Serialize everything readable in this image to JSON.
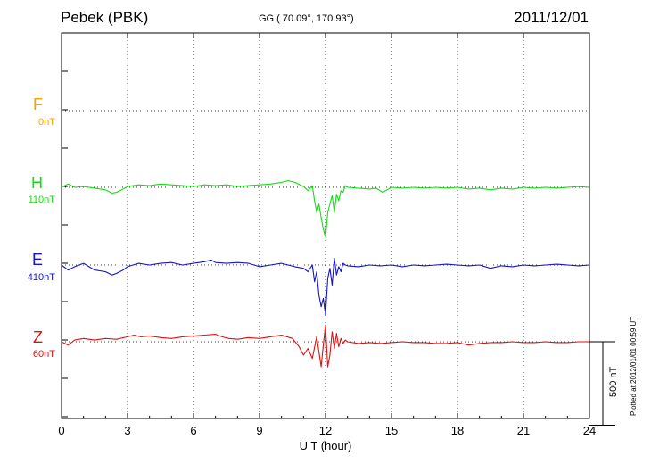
{
  "header": {
    "station": "Pebek (PBK)",
    "coords": "GG ( 70.09°, 170.93°)",
    "date": "2011/12/01"
  },
  "colors": {
    "F": "#f5a300",
    "H": "#19d919",
    "E": "#1414cc",
    "Z": "#dd1111"
  },
  "plotted_note": "Plotted at 2012/01/01 00:59 UT",
  "scale_bar_label": "500 nT",
  "chart_data": {
    "type": "line",
    "title": "Pebek (PBK)",
    "xlabel": "U T (hour)",
    "ylabel": "",
    "xlim": [
      0,
      24
    ],
    "x_ticks": [
      0,
      3,
      6,
      9,
      12,
      15,
      18,
      21,
      24
    ],
    "grid": true,
    "scale_bar_nT": 500,
    "series": [
      {
        "name": "F",
        "baseline_nT": "0nT",
        "color": "#f5a300",
        "x": [],
        "y": []
      },
      {
        "name": "H",
        "baseline_nT": "110nT",
        "color": "#19d919",
        "x": [
          0,
          0.3,
          0.6,
          1,
          1.5,
          2,
          2.3,
          2.5,
          2.8,
          3,
          3.5,
          4,
          4.5,
          5,
          5.5,
          6,
          6.5,
          7,
          7.5,
          8,
          8.5,
          9,
          9.5,
          10,
          10.3,
          10.6,
          11,
          11.2,
          11.4,
          11.5,
          11.6,
          11.7,
          11.8,
          11.9,
          12,
          12.1,
          12.2,
          12.3,
          12.4,
          12.5,
          12.6,
          12.7,
          12.8,
          12.9,
          13,
          13.5,
          14,
          14.3,
          14.6,
          15,
          15.5,
          16,
          16.5,
          17,
          17.5,
          18,
          18.5,
          19,
          19.5,
          20,
          20.5,
          21,
          21.5,
          22,
          22.5,
          23,
          23.5,
          24
        ],
        "y": [
          0,
          20,
          0,
          5,
          -5,
          -15,
          -35,
          -30,
          -10,
          5,
          15,
          10,
          20,
          15,
          10,
          5,
          15,
          10,
          15,
          5,
          10,
          15,
          20,
          30,
          40,
          30,
          5,
          -20,
          10,
          -80,
          -150,
          -100,
          -180,
          -250,
          -300,
          -150,
          -100,
          -50,
          -150,
          -40,
          -80,
          -20,
          -30,
          10,
          0,
          -5,
          -10,
          -5,
          -30,
          0,
          -5,
          0,
          -5,
          0,
          -5,
          0,
          -10,
          -5,
          -15,
          -5,
          -10,
          0,
          -5,
          0,
          -5,
          0,
          5,
          0
        ]
      },
      {
        "name": "E",
        "baseline_nT": "410nT",
        "color": "#1414cc",
        "x": [
          0,
          0.3,
          0.6,
          1,
          1.5,
          2,
          2.3,
          2.5,
          2.8,
          3,
          3.5,
          4,
          4.5,
          5,
          5.5,
          6,
          6.5,
          6.8,
          7,
          7.5,
          8,
          8.5,
          9,
          9.5,
          10,
          10.3,
          10.6,
          11,
          11.2,
          11.4,
          11.5,
          11.6,
          11.7,
          11.8,
          11.9,
          12,
          12.1,
          12.2,
          12.3,
          12.4,
          12.5,
          12.6,
          12.7,
          12.8,
          12.9,
          13,
          13.5,
          14,
          14.5,
          15,
          15.5,
          16,
          16.5,
          17,
          17.5,
          18,
          18.5,
          19,
          19.5,
          20,
          20.5,
          21,
          21.5,
          22,
          22.5,
          23,
          23.5,
          24
        ],
        "y": [
          0,
          -30,
          -10,
          10,
          -30,
          -40,
          -60,
          -50,
          -30,
          -10,
          10,
          0,
          10,
          15,
          0,
          10,
          20,
          30,
          15,
          10,
          15,
          10,
          -10,
          0,
          10,
          0,
          -10,
          -20,
          -40,
          0,
          -100,
          -40,
          -180,
          -250,
          -200,
          -300,
          -80,
          -20,
          -120,
          40,
          -60,
          -10,
          -40,
          10,
          0,
          -5,
          -10,
          0,
          -5,
          0,
          -10,
          0,
          -5,
          0,
          5,
          0,
          -5,
          0,
          -20,
          -5,
          -10,
          0,
          -5,
          0,
          5,
          0,
          -5,
          0
        ]
      },
      {
        "name": "Z",
        "baseline_nT": "60nT",
        "color": "#dd1111",
        "x": [
          0,
          0.3,
          0.6,
          1,
          1.5,
          2,
          2.5,
          3,
          3.3,
          3.6,
          4,
          4.5,
          5,
          5.5,
          6,
          6.5,
          7,
          7.3,
          7.6,
          8,
          8.5,
          9,
          9.5,
          10,
          10.5,
          10.8,
          11,
          11.2,
          11.4,
          11.6,
          11.8,
          11.9,
          12,
          12.1,
          12.2,
          12.3,
          12.4,
          12.5,
          12.6,
          12.7,
          12.8,
          12.9,
          13,
          13.5,
          14,
          14.5,
          15,
          15.5,
          16,
          16.5,
          17,
          17.5,
          18,
          18.5,
          19,
          19.5,
          20,
          20.5,
          21,
          21.5,
          22,
          22.5,
          23,
          23.5,
          24
        ],
        "y": [
          0,
          -20,
          10,
          20,
          10,
          20,
          15,
          30,
          40,
          30,
          35,
          25,
          20,
          30,
          35,
          40,
          45,
          30,
          20,
          15,
          25,
          20,
          30,
          40,
          20,
          -30,
          -80,
          -40,
          -100,
          30,
          -150,
          -20,
          100,
          -150,
          -80,
          60,
          -40,
          50,
          -30,
          20,
          -10,
          10,
          0,
          -10,
          -5,
          -10,
          -5,
          0,
          -5,
          -5,
          -10,
          -10,
          -5,
          -20,
          -10,
          -5,
          -5,
          0,
          -5,
          -5,
          0,
          -5,
          -5,
          0,
          0
        ]
      }
    ]
  }
}
